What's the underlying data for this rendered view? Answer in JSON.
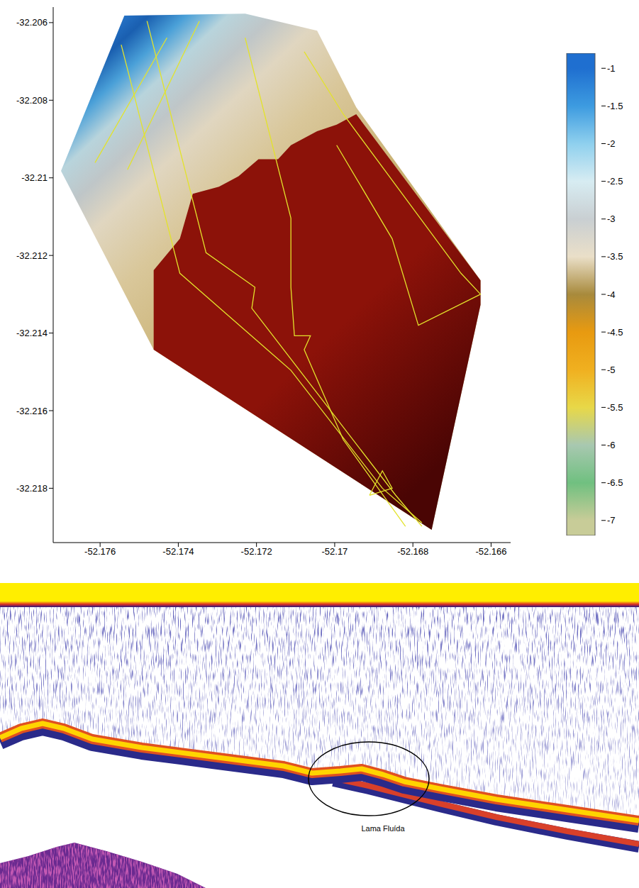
{
  "chart_data": [
    {
      "type": "map",
      "xlim": [
        -52.1772,
        -52.1655
      ],
      "ylim": [
        -32.2194,
        -32.2056
      ],
      "xticks": [
        -52.176,
        -52.174,
        -52.172,
        -52.17,
        -52.168,
        -52.166
      ],
      "yticks": [
        -32.218,
        -32.216,
        -32.214,
        -32.212,
        -32.21,
        -32.208,
        -32.206
      ],
      "survey_area": [
        [
          -52.177,
          -32.20982
        ],
        [
          -52.17538,
          -32.20582
        ],
        [
          -52.17229,
          -32.20577
        ],
        [
          -52.17045,
          -32.20621
        ],
        [
          -52.16945,
          -32.20818
        ],
        [
          -52.16627,
          -32.21264
        ],
        [
          -52.16627,
          -32.21327
        ],
        [
          -52.16752,
          -32.21907
        ],
        [
          -52.17463,
          -32.21443
        ]
      ],
      "fluid_mud": {
        "color": "#8c1209",
        "points": [
          [
            -52.17463,
            -32.21238
          ],
          [
            -52.17396,
            -32.21157
          ],
          [
            -52.17363,
            -32.21041
          ],
          [
            -52.17296,
            -32.21023
          ],
          [
            -52.17246,
            -32.20996
          ],
          [
            -52.17195,
            -32.20952
          ],
          [
            -52.17145,
            -32.20952
          ],
          [
            -52.17112,
            -32.20916
          ],
          [
            -52.17045,
            -32.2088
          ],
          [
            -52.16995,
            -32.20863
          ],
          [
            -52.16945,
            -32.20836
          ],
          [
            -52.16627,
            -32.21264
          ],
          [
            -52.16627,
            -32.21327
          ],
          [
            -52.16752,
            -32.21907
          ],
          [
            -52.17463,
            -32.21443
          ]
        ]
      },
      "tracks": {
        "color": "#e3e32b",
        "lines": [
          [
            [
              -52.17546,
              -32.20657
            ],
            [
              -52.17396,
              -32.21246
            ],
            [
              -52.17112,
              -32.21496
            ],
            [
              -52.16878,
              -32.218
            ],
            [
              -52.16777,
              -32.21889
            ]
          ],
          [
            [
              -52.17229,
              -32.20639
            ],
            [
              -52.17112,
              -32.21104
            ],
            [
              -52.17112,
              -32.21282
            ],
            [
              -52.17103,
              -32.21407
            ],
            [
              -52.17062,
              -32.21407
            ],
            [
              -52.17078,
              -32.21443
            ],
            [
              -52.16978,
              -32.21675
            ],
            [
              -52.16819,
              -32.21898
            ]
          ],
          [
            [
              -52.1748,
              -32.20596
            ],
            [
              -52.17329,
              -32.21193
            ],
            [
              -52.17204,
              -32.21282
            ],
            [
              -52.17212,
              -32.21336
            ],
            [
              -52.16844,
              -32.21818
            ],
            [
              -52.16777,
              -32.21898
            ]
          ],
          [
            [
              -52.17078,
              -32.20675
            ],
            [
              -52.16978,
              -32.20836
            ],
            [
              -52.16677,
              -32.21246
            ],
            [
              -52.16627,
              -32.213
            ]
          ],
          [
            [
              -52.16995,
              -32.20916
            ],
            [
              -52.16853,
              -32.21157
            ],
            [
              -52.16786,
              -32.2138
            ],
            [
              -52.16627,
              -32.213
            ]
          ],
          [
            [
              -52.17613,
              -32.20961
            ],
            [
              -52.17429,
              -32.20639
            ]
          ],
          [
            [
              -52.1753,
              -32.20979
            ],
            [
              -52.17346,
              -32.20596
            ]
          ],
          [
            [
              -52.16911,
              -32.21818
            ],
            [
              -52.16878,
              -32.21755
            ],
            [
              -52.16853,
              -32.218
            ],
            [
              -52.16911,
              -32.21818
            ]
          ]
        ]
      },
      "colorbar": {
        "range": [
          -7.2,
          -0.8
        ],
        "ticks": [
          -1,
          -1.5,
          -2,
          -2.5,
          -3,
          -3.5,
          -4,
          -4.5,
          -5,
          -5.5,
          -6,
          -6.5,
          -7
        ],
        "colors": [
          "#1f6fd0",
          "#3d9be0",
          "#8fd0ee",
          "#d7ecf2",
          "#c9cfd2",
          "#eadfc8",
          "#a88a3c",
          "#e89a10",
          "#f0b020",
          "#e8d848",
          "#a8c8b0",
          "#70c080",
          "#c8cc98"
        ]
      }
    },
    {
      "type": "echogram",
      "annotation": "Lama Fluída"
    }
  ]
}
